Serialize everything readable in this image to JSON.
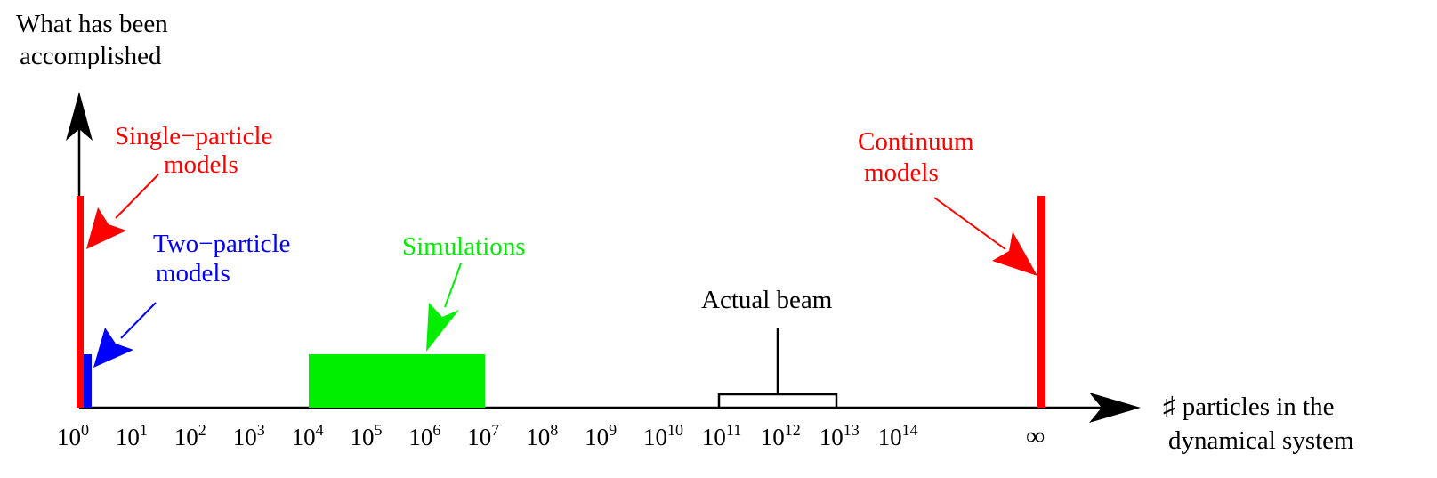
{
  "axes": {
    "y_label_line1": "What has been",
    "y_label_line2": "accomplished",
    "x_label_line1": "♯ particles in the",
    "x_label_line2": "dynamical system"
  },
  "ticks": [
    {
      "base": "10",
      "exp": "0"
    },
    {
      "base": "10",
      "exp": "1"
    },
    {
      "base": "10",
      "exp": "2"
    },
    {
      "base": "10",
      "exp": "3"
    },
    {
      "base": "10",
      "exp": "4"
    },
    {
      "base": "10",
      "exp": "5"
    },
    {
      "base": "10",
      "exp": "6"
    },
    {
      "base": "10",
      "exp": "7"
    },
    {
      "base": "10",
      "exp": "8"
    },
    {
      "base": "10",
      "exp": "9"
    },
    {
      "base": "10",
      "exp": "10"
    },
    {
      "base": "10",
      "exp": "11"
    },
    {
      "base": "10",
      "exp": "12"
    },
    {
      "base": "10",
      "exp": "13"
    },
    {
      "base": "10",
      "exp": "14"
    }
  ],
  "infinity_tick": "∞",
  "labels": {
    "single_particle_line1": "Single−particle",
    "single_particle_line2": "models",
    "two_particle_line1": "Two−particle",
    "two_particle_line2": "models",
    "simulations": "Simulations",
    "actual_beam": "Actual beam",
    "continuum_line1": "Continuum",
    "continuum_line2": "models"
  },
  "colors": {
    "single_particle": "#ff0000",
    "two_particle": "#0000ff",
    "simulations": "#00ee00",
    "continuum": "#ff0000",
    "axis": "#000000"
  }
}
